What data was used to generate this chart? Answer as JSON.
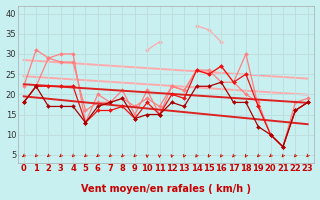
{
  "xlabel": "Vent moyen/en rafales ( km/h )",
  "background_color": "#c8f0f0",
  "grid_color": "#c0dede",
  "x_values": [
    0,
    1,
    2,
    3,
    4,
    5,
    6,
    7,
    8,
    9,
    10,
    11,
    12,
    13,
    14,
    15,
    16,
    17,
    18,
    19,
    20,
    21,
    22,
    23
  ],
  "ylim": [
    3,
    42
  ],
  "yticks": [
    5,
    10,
    15,
    20,
    25,
    30,
    35,
    40
  ],
  "arrow_angles": [
    -80,
    -70,
    -75,
    -70,
    -70,
    -80,
    -75,
    -75,
    -70,
    -65,
    -10,
    -10,
    -30,
    -40,
    -50,
    -50,
    -55,
    -55,
    -50,
    -70,
    -80,
    -60,
    -60,
    -60
  ],
  "series": [
    {
      "data": [
        22,
        31,
        29,
        30,
        30,
        13,
        20,
        18,
        21,
        15,
        21,
        15,
        22,
        21,
        26,
        25,
        27,
        23,
        30,
        17,
        10,
        7,
        16,
        18
      ],
      "color": "#ff8080",
      "lw": 0.9,
      "marker": "D",
      "ms": 2.0,
      "zorder": 2
    },
    {
      "data": [
        18,
        22,
        29,
        28,
        28,
        16,
        18,
        18,
        19,
        17,
        19,
        17,
        22,
        21,
        26,
        26,
        23,
        23,
        20,
        18,
        10,
        7,
        18,
        19
      ],
      "color": "#ff8080",
      "lw": 0.9,
      "marker": "D",
      "ms": 2.0,
      "zorder": 2
    },
    {
      "data": [
        null,
        null,
        null,
        null,
        null,
        null,
        null,
        null,
        null,
        null,
        31,
        33,
        null,
        null,
        37,
        36,
        33,
        null,
        null,
        null,
        null,
        null,
        null,
        null
      ],
      "color": "#ffaaaa",
      "lw": 0.9,
      "marker": "D",
      "ms": 2.0,
      "zorder": 1
    },
    {
      "data": [
        22.5,
        22.3,
        22.1,
        21.9,
        21.7,
        21.5,
        21.3,
        21.1,
        20.9,
        20.7,
        20.5,
        20.3,
        20.1,
        19.9,
        19.7,
        19.5,
        19.3,
        19.1,
        18.9,
        18.7,
        18.5,
        18.3,
        18.1,
        17.9
      ],
      "color": "#dd2222",
      "lw": 1.4,
      "marker": null,
      "ms": 0,
      "zorder": 3,
      "linestyle": "-"
    },
    {
      "data": [
        19.5,
        19.2,
        18.9,
        18.6,
        18.3,
        18.0,
        17.7,
        17.4,
        17.1,
        16.8,
        16.5,
        16.2,
        15.9,
        15.6,
        15.3,
        15.0,
        14.7,
        14.4,
        14.1,
        13.8,
        13.5,
        13.2,
        12.9,
        12.6
      ],
      "color": "#dd2222",
      "lw": 1.4,
      "marker": null,
      "ms": 0,
      "zorder": 3,
      "linestyle": "-"
    },
    {
      "data": [
        28.5,
        28.3,
        28.1,
        27.9,
        27.7,
        27.5,
        27.3,
        27.1,
        26.9,
        26.7,
        26.5,
        26.3,
        26.1,
        25.9,
        25.7,
        25.5,
        25.3,
        25.1,
        24.9,
        24.7,
        24.5,
        24.3,
        24.1,
        23.9
      ],
      "color": "#ffaaaa",
      "lw": 1.4,
      "marker": null,
      "ms": 0,
      "zorder": 1,
      "linestyle": "-"
    },
    {
      "data": [
        24.5,
        24.3,
        24.1,
        23.9,
        23.7,
        23.5,
        23.3,
        23.1,
        22.9,
        22.7,
        22.5,
        22.3,
        22.1,
        21.9,
        21.7,
        21.5,
        21.3,
        21.1,
        20.9,
        20.7,
        20.5,
        20.3,
        20.1,
        19.9
      ],
      "color": "#ffaaaa",
      "lw": 1.4,
      "marker": null,
      "ms": 0,
      "zorder": 1,
      "linestyle": "-"
    },
    {
      "data": [
        18,
        22,
        22,
        22,
        22,
        13,
        16,
        16,
        17,
        14,
        18,
        15,
        20,
        19,
        26,
        25,
        27,
        23,
        25,
        17,
        10,
        7,
        16,
        18
      ],
      "color": "#ee1111",
      "lw": 0.9,
      "marker": "D",
      "ms": 2.0,
      "zorder": 4
    },
    {
      "data": [
        18,
        22,
        17,
        17,
        17,
        13,
        17,
        18,
        19,
        14,
        15,
        15,
        18,
        17,
        22,
        22,
        23,
        18,
        18,
        12,
        10,
        7,
        16,
        18
      ],
      "color": "#aa0000",
      "lw": 0.9,
      "marker": "D",
      "ms": 2.0,
      "zorder": 4
    }
  ],
  "arrow_color": "#cc1100",
  "xlabel_color": "#cc0000",
  "xlabel_fontsize": 7,
  "tick_fontsize": 6,
  "ytick_color": "#333333"
}
